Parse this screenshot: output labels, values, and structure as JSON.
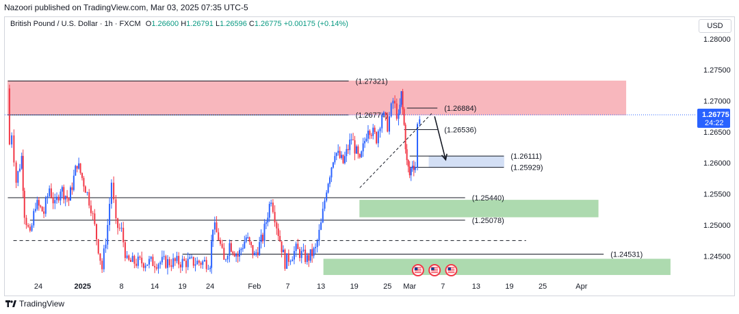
{
  "header": {
    "publisher": "Nazoori published on TradingView.com, Mar 03, 2025 07:35 UTC-5"
  },
  "legend": {
    "symbol": "British Pound / U.S. Dollar · 1h · FXCM",
    "open_label": "O",
    "open": "1.26600",
    "high_label": "H",
    "high": "1.26791",
    "low_label": "L",
    "low": "1.26596",
    "close_label": "C",
    "close": "1.26775",
    "change": "+0.00175 (+0.14%)"
  },
  "axis": {
    "currency": "USD"
  },
  "price_badge": {
    "price": "1.26775",
    "countdown": "24:22"
  },
  "footer": {
    "brand": "TradingView"
  },
  "colors": {
    "up": "#2962ff",
    "down": "#f23645",
    "supply_zone": "#f8b0b6",
    "demand_zone": "#a5d6a7",
    "target_zone": "#cfdcf5",
    "price_badge": "#2962ff"
  },
  "chart_data": {
    "type": "candlestick",
    "yaxis": {
      "ylim": [
        1.2415,
        1.2835
      ],
      "ticks": [
        1.245,
        1.25,
        1.255,
        1.26,
        1.265,
        1.27,
        1.275,
        1.28
      ],
      "tick_labels": [
        "1.24500",
        "1.25000",
        "1.25500",
        "1.26000",
        "1.26500",
        "1.27000",
        "1.27500",
        "1.28000"
      ]
    },
    "xaxis": {
      "ticks": [
        {
          "label": "24",
          "day": 0
        },
        {
          "label": "2025",
          "day": 8,
          "bold": true
        },
        {
          "label": "8",
          "day": 15
        },
        {
          "label": "14",
          "day": 21
        },
        {
          "label": "19",
          "day": 26
        },
        {
          "label": "24",
          "day": 31
        },
        {
          "label": "Feb",
          "day": 39
        },
        {
          "label": "7",
          "day": 45
        },
        {
          "label": "13",
          "day": 51
        },
        {
          "label": "19",
          "day": 57
        },
        {
          "label": "25",
          "day": 63
        },
        {
          "label": "Mar",
          "day": 67
        },
        {
          "label": "7",
          "day": 73
        },
        {
          "label": "13",
          "day": 79
        },
        {
          "label": "19",
          "day": 85
        },
        {
          "label": "25",
          "day": 91
        },
        {
          "label": "Apr",
          "day": 98
        }
      ]
    },
    "price_path": [
      {
        "day": -5.5,
        "p": 1.272
      },
      {
        "day": -5.2,
        "p": 1.263
      },
      {
        "day": -4.8,
        "p": 1.265
      },
      {
        "day": -4.0,
        "p": 1.257
      },
      {
        "day": -3.0,
        "p": 1.261
      },
      {
        "day": -2.5,
        "p": 1.252
      },
      {
        "day": -1.5,
        "p": 1.248
      },
      {
        "day": -0.5,
        "p": 1.2535
      },
      {
        "day": 1.0,
        "p": 1.252
      },
      {
        "day": 2.0,
        "p": 1.256
      },
      {
        "day": 3.0,
        "p": 1.253
      },
      {
        "day": 4.0,
        "p": 1.256
      },
      {
        "day": 5.5,
        "p": 1.254
      },
      {
        "day": 7.0,
        "p": 1.26
      },
      {
        "day": 8.5,
        "p": 1.256
      },
      {
        "day": 9.5,
        "p": 1.253
      },
      {
        "day": 10.5,
        "p": 1.248
      },
      {
        "day": 11.5,
        "p": 1.243
      },
      {
        "day": 12.5,
        "p": 1.25
      },
      {
        "day": 13.2,
        "p": 1.257
      },
      {
        "day": 14.0,
        "p": 1.25
      },
      {
        "day": 15.0,
        "p": 1.249
      },
      {
        "day": 16.0,
        "p": 1.244
      },
      {
        "day": 31.0,
        "p": 1.244
      },
      {
        "day": 31.5,
        "p": 1.25
      },
      {
        "day": 32.5,
        "p": 1.248
      },
      {
        "day": 33.5,
        "p": 1.244
      },
      {
        "day": 34.5,
        "p": 1.247
      },
      {
        "day": 36.0,
        "p": 1.245
      },
      {
        "day": 37.5,
        "p": 1.248
      },
      {
        "day": 39.0,
        "p": 1.245
      },
      {
        "day": 40.5,
        "p": 1.248
      },
      {
        "day": 42.0,
        "p": 1.2545
      },
      {
        "day": 43.0,
        "p": 1.25
      },
      {
        "day": 44.5,
        "p": 1.244
      },
      {
        "day": 46.5,
        "p": 1.246
      },
      {
        "day": 48.5,
        "p": 1.2445
      },
      {
        "day": 50.0,
        "p": 1.246
      },
      {
        "day": 51.0,
        "p": 1.25
      },
      {
        "day": 52.0,
        "p": 1.256
      },
      {
        "day": 53.5,
        "p": 1.262
      },
      {
        "day": 55.0,
        "p": 1.26
      },
      {
        "day": 56.5,
        "p": 1.264
      },
      {
        "day": 58.0,
        "p": 1.26
      },
      {
        "day": 59.5,
        "p": 1.266
      },
      {
        "day": 61.0,
        "p": 1.264
      },
      {
        "day": 62.0,
        "p": 1.268
      },
      {
        "day": 63.0,
        "p": 1.266
      },
      {
        "day": 64.0,
        "p": 1.27
      },
      {
        "day": 65.0,
        "p": 1.267
      },
      {
        "day": 65.5,
        "p": 1.271
      },
      {
        "day": 66.0,
        "p": 1.266
      },
      {
        "day": 66.5,
        "p": 1.26
      },
      {
        "day": 67.0,
        "p": 1.258
      },
      {
        "day": 67.5,
        "p": 1.26
      },
      {
        "day": 68.0,
        "p": 1.2595
      },
      {
        "day": 68.4,
        "p": 1.266
      },
      {
        "day": 68.8,
        "p": 1.26775
      }
    ],
    "levels": [
      {
        "label": "(1.27321)",
        "price": 1.27321,
        "from_day": -5.5,
        "to_day": 56
      },
      {
        "label": "(1.26774)",
        "price": 1.26774,
        "from_day": -5.5,
        "to_day": 56
      },
      {
        "label": "(1.26884)",
        "price": 1.26884,
        "from_day": 66.5,
        "to_day": 72
      },
      {
        "label": "(1.26536)",
        "price": 1.26536,
        "from_day": 66,
        "to_day": 72
      },
      {
        "label": "(1.26111)",
        "price": 1.26111,
        "from_day": 67,
        "to_day": 84
      },
      {
        "label": "(1.25929)",
        "price": 1.25929,
        "from_day": 67,
        "to_day": 84
      },
      {
        "label": "(1.25440)",
        "price": 1.2544,
        "from_day": -5.5,
        "to_day": 77
      },
      {
        "label": "(1.25078)",
        "price": 1.25078,
        "from_day": -1.5,
        "to_day": 77
      },
      {
        "label": "(1.24531)",
        "price": 1.24531,
        "from_day": 26,
        "to_day": 102
      }
    ],
    "dashed_level": {
      "price": 1.2475,
      "from_day": -4.5,
      "to_day": 88
    },
    "zones": [
      {
        "name": "supply",
        "top": 1.27321,
        "bottom": 1.26774,
        "from_day": -5.5,
        "to_day": 106
      },
      {
        "name": "target",
        "top": 1.26111,
        "bottom": 1.25929,
        "from_day": 70.5,
        "to_day": 84
      },
      {
        "name": "demand-upper",
        "top": 1.254,
        "bottom": 1.2513,
        "from_day": 58,
        "to_day": 101
      },
      {
        "name": "demand-lower",
        "top": 1.2445,
        "bottom": 1.242,
        "from_day": 51.5,
        "to_day": 114
      }
    ],
    "trendline": {
      "from": {
        "day": 58,
        "p": 1.256
      },
      "to": {
        "day": 71,
        "p": 1.268
      }
    },
    "arrow": {
      "from": {
        "day": 71.5,
        "p": 1.2675
      },
      "to": {
        "day": 73.5,
        "p": 1.2605
      }
    },
    "events": [
      {
        "day": 68.5,
        "icon": "us-flag-icon"
      },
      {
        "day": 71.5,
        "icon": "us-flag-icon"
      },
      {
        "day": 74.5,
        "icon": "us-flag-icon"
      }
    ]
  }
}
